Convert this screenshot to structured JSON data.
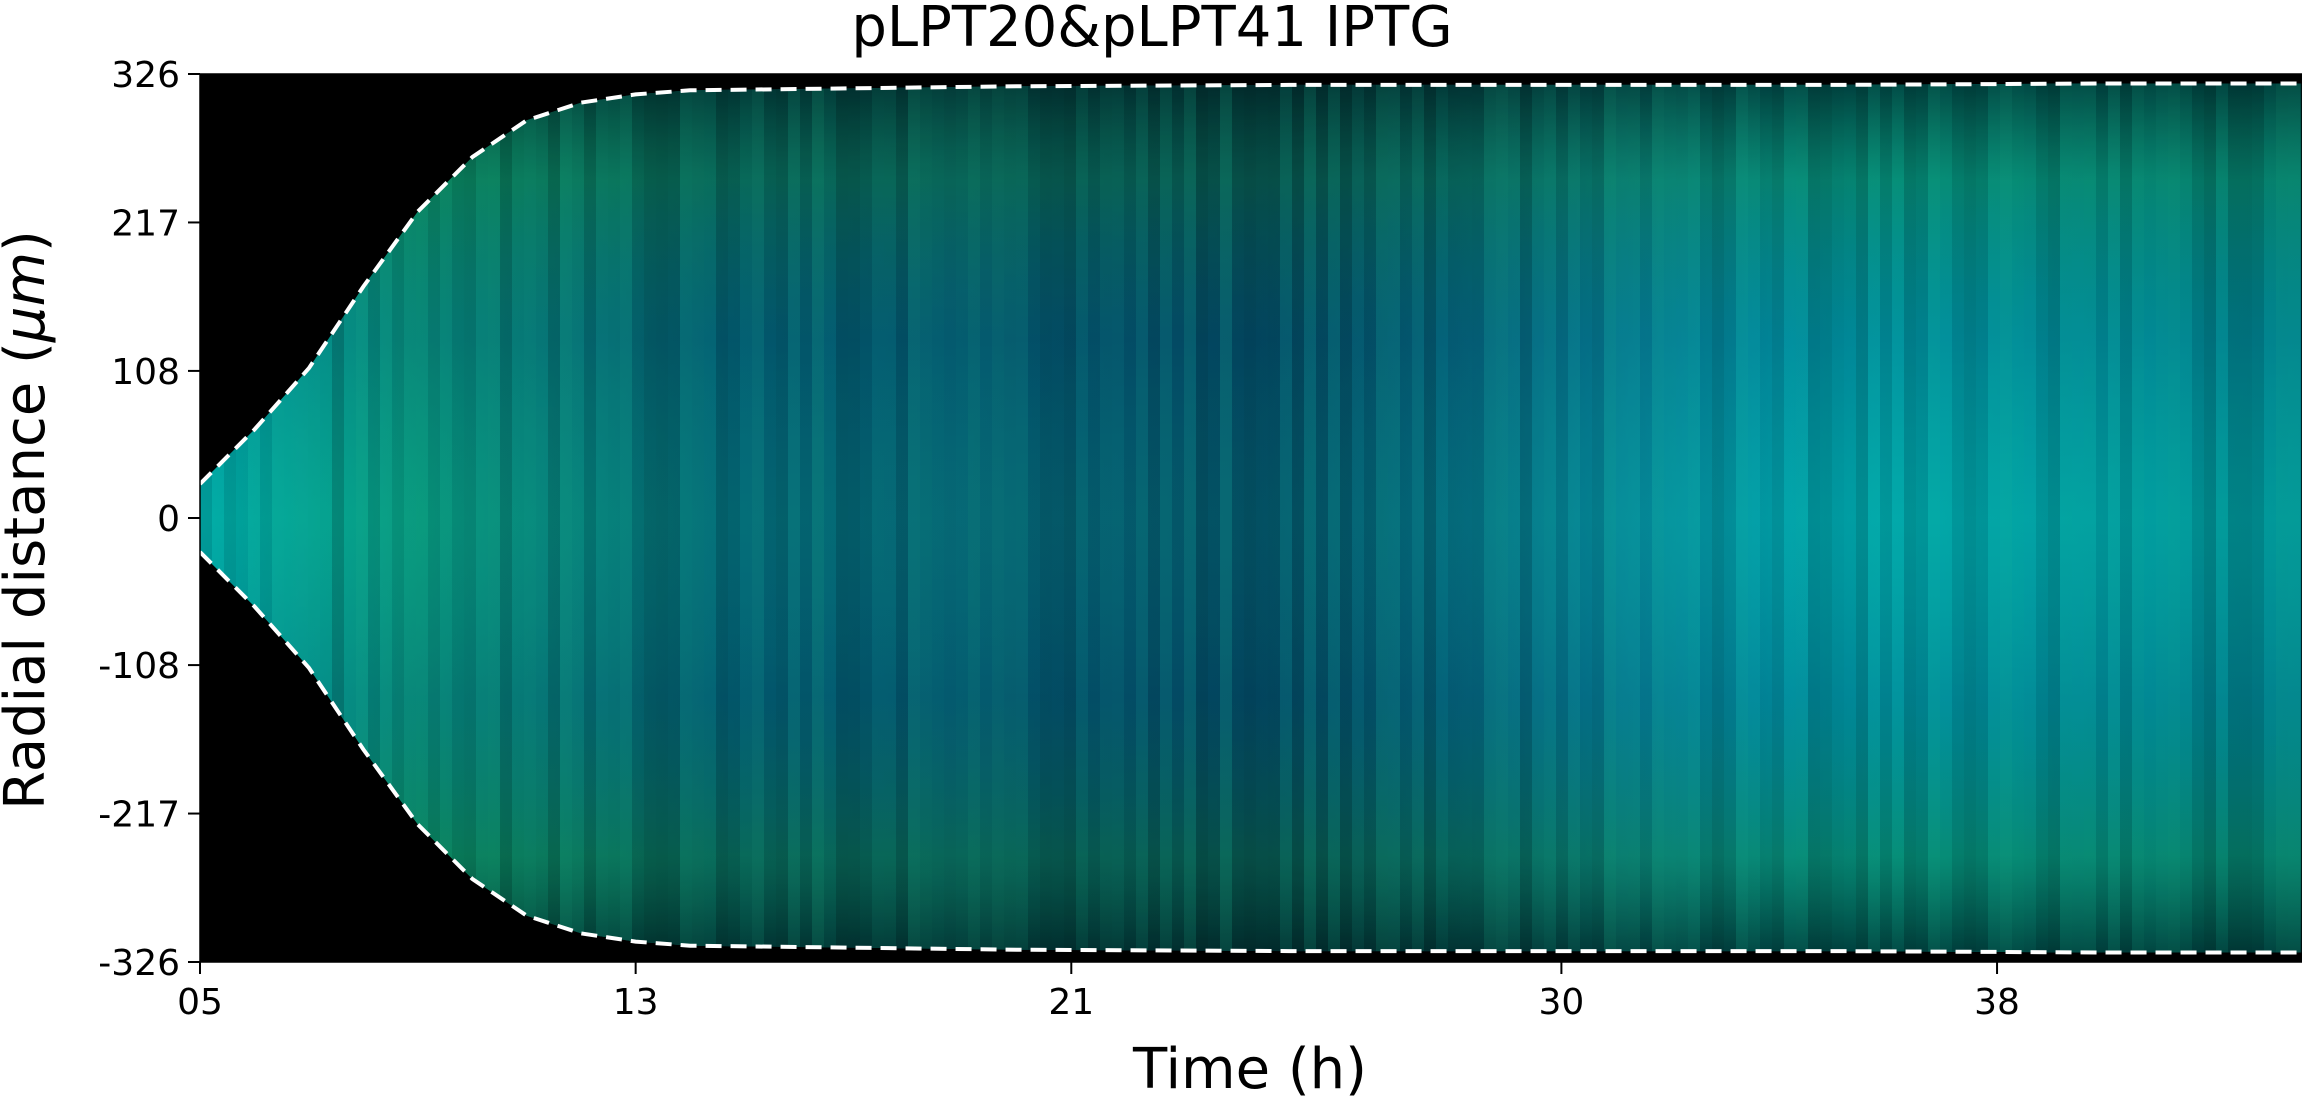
{
  "chart_data": {
    "type": "heatmap",
    "title": "pLPT20&pLPT41 IPTG",
    "xlabel": "Time (h)",
    "ylabel_prefix": "Radial distance (",
    "ylabel_unit": "μm",
    "ylabel_suffix": ")",
    "xlim": [
      5,
      43.6
    ],
    "ylim": [
      -326,
      326
    ],
    "x_ticks": [
      {
        "value": 5,
        "label": "05"
      },
      {
        "value": 13,
        "label": "13"
      },
      {
        "value": 21,
        "label": "21"
      },
      {
        "value": 30,
        "label": "30"
      },
      {
        "value": 38,
        "label": "38"
      }
    ],
    "y_ticks": [
      {
        "value": 326,
        "label": "326"
      },
      {
        "value": 217,
        "label": "217"
      },
      {
        "value": 108,
        "label": "108"
      },
      {
        "value": 0,
        "label": "0"
      },
      {
        "value": -108,
        "label": "-108"
      },
      {
        "value": -217,
        "label": "-217"
      },
      {
        "value": -326,
        "label": "-326"
      }
    ],
    "background_color": "#000000",
    "channels": [
      {
        "color": "#00c878"
      },
      {
        "color": "#00b4e6"
      }
    ],
    "colony_edge": {
      "style": "dashed",
      "color": "#ffffff",
      "time": [
        5,
        5.5,
        6,
        7,
        8,
        9,
        10,
        11,
        12,
        13,
        14,
        16,
        18,
        20,
        25,
        30,
        35,
        40,
        43.6
      ],
      "radius": [
        25,
        45,
        65,
        110,
        170,
        225,
        265,
        292,
        305,
        311,
        314,
        315,
        316,
        317,
        318,
        318,
        318,
        319,
        319
      ]
    },
    "grid": false,
    "legend": "none"
  }
}
